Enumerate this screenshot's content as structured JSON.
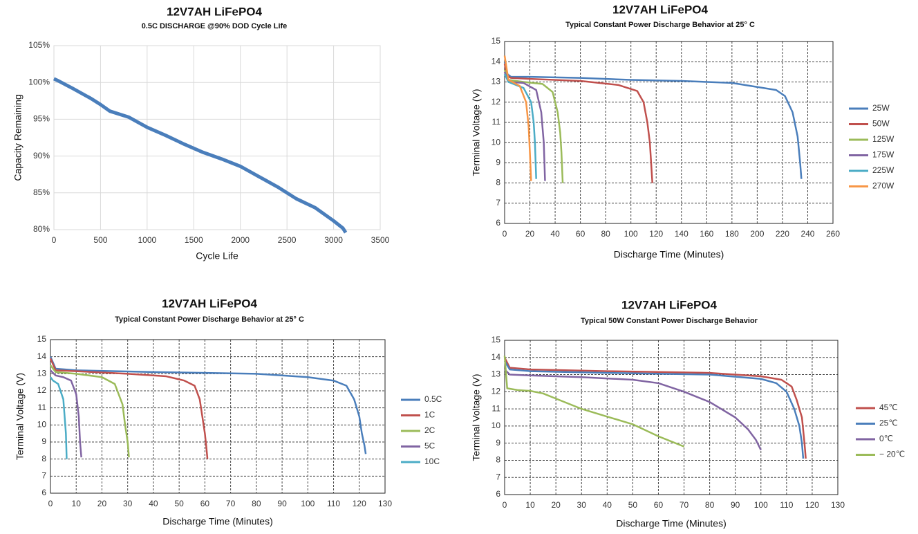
{
  "chart_data": [
    {
      "type": "line",
      "title": "12V7AH LiFePO4",
      "subtitle": "0.5C DISCHARGE @90% DOD Cycle  Life",
      "x_label": "Cycle Life",
      "y_label": "Capacity Remaining",
      "color": "#4a7ebb",
      "grid": true,
      "grid_style": "solid",
      "x": [
        0,
        50,
        200,
        400,
        500,
        600,
        800,
        1000,
        1200,
        1400,
        1600,
        1800,
        2000,
        2200,
        2400,
        2600,
        2800,
        3000,
        3100,
        3130
      ],
      "values": [
        100.5,
        100.2,
        99.2,
        97.8,
        97,
        96.1,
        95.3,
        93.9,
        92.8,
        91.6,
        90.5,
        89.6,
        88.6,
        87.2,
        85.8,
        84.2,
        83,
        81.2,
        80.2,
        79.6
      ],
      "xlim": [
        0,
        3500
      ],
      "xticks": [
        0,
        500,
        1000,
        1500,
        2000,
        2500,
        3000,
        3500
      ],
      "ylim": [
        80,
        105
      ],
      "yticks": [
        {
          "value": 80,
          "label": "80%"
        },
        {
          "value": 85,
          "label": "85%"
        },
        {
          "value": 90,
          "label": "90%"
        },
        {
          "value": 95,
          "label": "95%"
        },
        {
          "value": 100,
          "label": "100%"
        },
        {
          "value": 105,
          "label": "105%"
        }
      ]
    },
    {
      "type": "line",
      "title": "12V7AH LiFePO4",
      "subtitle": "Typical Constant Power Discharge  Behavior at 25°  C",
      "x_label": "Discharge Time (Minutes)",
      "y_label": "Terminal Voltage (V)",
      "grid": true,
      "grid_style": "dashed",
      "legend": "right",
      "xlim": [
        0,
        260
      ],
      "xticks": [
        0,
        20,
        40,
        60,
        80,
        100,
        120,
        140,
        160,
        180,
        200,
        220,
        240,
        260
      ],
      "ylim": [
        6,
        15
      ],
      "yticks": [
        6,
        7,
        8,
        9,
        10,
        11,
        12,
        13,
        14,
        15
      ],
      "series": [
        {
          "name": "25W",
          "color": "#4a7ebb",
          "x": [
            0,
            2,
            5,
            20,
            60,
            100,
            140,
            180,
            200,
            215,
            222,
            228,
            232,
            234,
            235
          ],
          "values": [
            14.0,
            13.4,
            13.25,
            13.25,
            13.2,
            13.1,
            13.05,
            12.95,
            12.75,
            12.6,
            12.3,
            11.5,
            10.3,
            9.0,
            8.2
          ]
        },
        {
          "name": "50W",
          "color": "#c0504d",
          "x": [
            0,
            2,
            5,
            20,
            60,
            90,
            105,
            110,
            113,
            115,
            116,
            117
          ],
          "values": [
            13.9,
            13.3,
            13.2,
            13.15,
            13.05,
            12.85,
            12.55,
            12.0,
            11.0,
            10.0,
            9.0,
            8.0
          ]
        },
        {
          "name": "125W",
          "color": "#9bbb59",
          "x": [
            0,
            3,
            15,
            30,
            38,
            42,
            44,
            45,
            46
          ],
          "values": [
            13.6,
            13.1,
            13.0,
            12.9,
            12.5,
            11.5,
            10.5,
            9.5,
            8.0
          ]
        },
        {
          "name": "175W",
          "color": "#8064a2",
          "x": [
            0,
            3,
            15,
            25,
            29,
            31,
            32
          ],
          "values": [
            13.5,
            13.0,
            12.95,
            12.6,
            11.5,
            10,
            8.1
          ]
        },
        {
          "name": "225W",
          "color": "#4bacc6",
          "x": [
            0,
            3,
            15,
            21,
            23,
            24,
            25
          ],
          "values": [
            13.4,
            13.0,
            12.7,
            12.0,
            11,
            10,
            8.2
          ]
        },
        {
          "name": "270W",
          "color": "#f79646",
          "x": [
            0,
            3,
            12,
            17,
            19,
            20,
            21
          ],
          "values": [
            14.3,
            13.1,
            12.8,
            12.0,
            10.8,
            9.5,
            8.1
          ]
        }
      ]
    },
    {
      "type": "line",
      "title": "12V7AH LiFePO4",
      "subtitle": "Typical Constant Power Discharge Behavior at 25°  C",
      "x_label": "Discharge Time (Minutes)",
      "y_label": "Terminal Voltage (V)",
      "grid": true,
      "grid_style": "dashed",
      "legend": "right",
      "xlim": [
        0,
        130
      ],
      "xticks": [
        0,
        10,
        20,
        30,
        40,
        50,
        60,
        70,
        80,
        90,
        100,
        110,
        120,
        130
      ],
      "ylim": [
        6,
        15
      ],
      "yticks": [
        6,
        7,
        8,
        9,
        10,
        11,
        12,
        13,
        14,
        15
      ],
      "series": [
        {
          "name": "0.5C",
          "color": "#4a7ebb",
          "x": [
            0,
            2,
            10,
            40,
            80,
            100,
            110,
            115,
            118,
            120,
            121,
            122,
            122.5
          ],
          "values": [
            14.0,
            13.3,
            13.2,
            13.1,
            13.0,
            12.8,
            12.6,
            12.3,
            11.5,
            10.5,
            9.5,
            8.8,
            8.3
          ]
        },
        {
          "name": "1C",
          "color": "#c0504d",
          "x": [
            0,
            2,
            10,
            30,
            45,
            52,
            56,
            58,
            59,
            60,
            60.5,
            61
          ],
          "values": [
            13.9,
            13.2,
            13.15,
            13.0,
            12.85,
            12.6,
            12.3,
            11.5,
            10.5,
            9.5,
            8.8,
            8.0
          ]
        },
        {
          "name": "2C",
          "color": "#9bbb59",
          "x": [
            0,
            2,
            10,
            20,
            25,
            28,
            29,
            30,
            30.5
          ],
          "values": [
            13.5,
            13.1,
            13.0,
            12.8,
            12.4,
            11.2,
            10,
            9,
            8.1
          ]
        },
        {
          "name": "5C",
          "color": "#8064a2",
          "x": [
            0,
            2,
            5,
            8,
            10,
            11,
            11.5,
            12
          ],
          "values": [
            13.2,
            12.9,
            12.8,
            12.6,
            11.8,
            10.5,
            9,
            8.1
          ]
        },
        {
          "name": "10C",
          "color": "#4bacc6",
          "x": [
            0,
            1,
            3,
            5,
            6,
            6.3
          ],
          "values": [
            12.8,
            12.6,
            12.4,
            11.5,
            9.5,
            8.0
          ]
        }
      ]
    },
    {
      "type": "line",
      "title": "12V7AH LiFePO4",
      "subtitle": "Typical 50W Constant Power Discharge Behavior",
      "x_label": "Discharge Time (Minutes)",
      "y_label": "Terminal Voltage (V)",
      "grid": true,
      "grid_style": "dashed",
      "legend": "right",
      "xlim": [
        0,
        130
      ],
      "xticks": [
        0,
        10,
        20,
        30,
        40,
        50,
        60,
        70,
        80,
        90,
        100,
        110,
        120,
        130
      ],
      "ylim": [
        6,
        15
      ],
      "yticks": [
        6,
        7,
        8,
        9,
        10,
        11,
        12,
        13,
        14,
        15
      ],
      "series": [
        {
          "name": "45℃",
          "color": "#c0504d",
          "x": [
            0,
            2,
            10,
            40,
            80,
            100,
            108,
            112,
            114,
            116,
            117,
            117.5
          ],
          "values": [
            14.0,
            13.4,
            13.3,
            13.2,
            13.1,
            12.9,
            12.7,
            12.3,
            11.5,
            10.5,
            9,
            8.1
          ]
        },
        {
          "name": "25℃",
          "color": "#4a7ebb",
          "x": [
            0,
            2,
            10,
            40,
            80,
            100,
            106,
            110,
            113,
            115,
            116,
            116.5
          ],
          "values": [
            13.8,
            13.3,
            13.2,
            13.1,
            13.0,
            12.75,
            12.5,
            12.0,
            11.0,
            10.0,
            9.0,
            8.1
          ]
        },
        {
          "name": "0℃",
          "color": "#8064a2",
          "x": [
            0,
            2,
            10,
            30,
            50,
            60,
            70,
            80,
            90,
            95,
            98,
            100
          ],
          "values": [
            13.3,
            13.0,
            12.95,
            12.85,
            12.7,
            12.5,
            12.0,
            11.4,
            10.5,
            9.8,
            9.2,
            8.6
          ]
        },
        {
          "name": "− 20℃",
          "color": "#9bbb59",
          "x": [
            0,
            1,
            5,
            10,
            15,
            20,
            30,
            40,
            50,
            60,
            65,
            70
          ],
          "values": [
            14.1,
            12.2,
            12.1,
            12.05,
            11.9,
            11.6,
            11.0,
            10.55,
            10.1,
            9.4,
            9.1,
            8.8
          ]
        }
      ]
    }
  ]
}
